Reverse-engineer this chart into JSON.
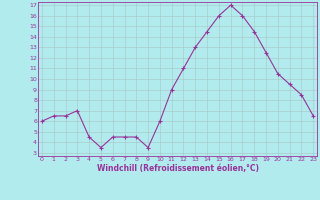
{
  "x": [
    0,
    1,
    2,
    3,
    4,
    5,
    6,
    7,
    8,
    9,
    10,
    11,
    12,
    13,
    14,
    15,
    16,
    17,
    18,
    19,
    20,
    21,
    22,
    23
  ],
  "y": [
    6.0,
    6.5,
    6.5,
    7.0,
    4.5,
    3.5,
    4.5,
    4.5,
    4.5,
    3.5,
    6.0,
    9.0,
    11.0,
    13.0,
    14.5,
    16.0,
    17.0,
    16.0,
    14.5,
    12.5,
    10.5,
    9.5,
    8.5,
    6.5
  ],
  "line_color": "#993399",
  "marker": "+",
  "marker_size": 3.5,
  "bg_color": "#b2ebee",
  "grid_color": "#aacccc",
  "xlabel": "Windchill (Refroidissement éolien,°C)",
  "xlabel_color": "#993399",
  "tick_color": "#993399",
  "ylim_min": 3,
  "ylim_max": 17,
  "xlim_min": 0,
  "xlim_max": 23,
  "yticks": [
    3,
    4,
    5,
    6,
    7,
    8,
    9,
    10,
    11,
    12,
    13,
    14,
    15,
    16,
    17
  ],
  "xticks": [
    0,
    1,
    2,
    3,
    4,
    5,
    6,
    7,
    8,
    9,
    10,
    11,
    12,
    13,
    14,
    15,
    16,
    17,
    18,
    19,
    20,
    21,
    22,
    23
  ]
}
